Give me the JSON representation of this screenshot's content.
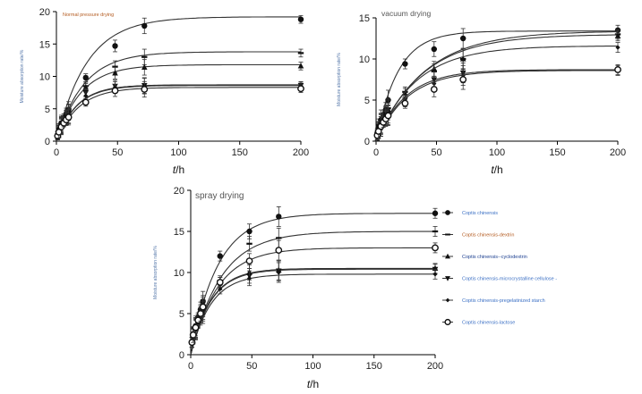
{
  "chart_data": [
    {
      "type": "line",
      "title": "Normal pressure drying",
      "title_color": "#b35a1f",
      "xlabel": "t/h",
      "ylabel": "Moisture absorption rate/%",
      "xlim": [
        0,
        200
      ],
      "ylim": [
        0,
        20
      ],
      "xticks": [
        0,
        50,
        100,
        150,
        200
      ],
      "yticks": [
        0,
        5,
        10,
        15,
        20
      ],
      "grid": false,
      "series": [
        {
          "marker": "circle-filled",
          "x": [
            1,
            2,
            4,
            6,
            8,
            10,
            24,
            48,
            72,
            200
          ],
          "y": [
            1.0,
            1.8,
            2.8,
            3.6,
            4.2,
            4.9,
            9.8,
            14.7,
            17.8,
            18.8
          ],
          "plateau": 19.2,
          "rate": 0.04
        },
        {
          "marker": "dash",
          "x": [
            1,
            2,
            4,
            6,
            8,
            10,
            24,
            48,
            72,
            200
          ],
          "y": [
            0.9,
            1.6,
            2.6,
            3.3,
            3.9,
            4.5,
            8.5,
            11.5,
            13.0,
            13.6
          ],
          "plateau": 13.8,
          "rate": 0.045
        },
        {
          "marker": "triangle",
          "x": [
            1,
            2,
            4,
            6,
            8,
            10,
            24,
            48,
            72,
            200
          ],
          "y": [
            0.9,
            1.6,
            2.5,
            3.2,
            3.8,
            4.4,
            8.3,
            10.5,
            11.4,
            11.6
          ],
          "plateau": 11.8,
          "rate": 0.05
        },
        {
          "marker": "triangle-down",
          "x": [
            1,
            2,
            4,
            6,
            8,
            10,
            24,
            48,
            72,
            200
          ],
          "y": [
            0.8,
            1.5,
            2.4,
            3.0,
            3.6,
            4.0,
            7.5,
            8.5,
            8.6,
            8.6
          ],
          "plateau": 8.7,
          "rate": 0.06
        },
        {
          "marker": "diamond",
          "x": [
            1,
            2,
            4,
            6,
            8,
            10,
            24,
            48,
            72,
            200
          ],
          "y": [
            0.8,
            1.5,
            2.3,
            2.9,
            3.5,
            3.9,
            7.0,
            8.3,
            8.5,
            8.5
          ],
          "plateau": 8.6,
          "rate": 0.06
        },
        {
          "marker": "circle-open",
          "x": [
            1,
            2,
            4,
            6,
            8,
            10,
            24,
            48,
            72,
            200
          ],
          "y": [
            0.8,
            1.4,
            2.2,
            2.8,
            3.3,
            3.7,
            6.0,
            7.8,
            8.0,
            8.1
          ],
          "plateau": 8.3,
          "rate": 0.055
        }
      ]
    },
    {
      "type": "line",
      "title": "vacuum drying",
      "title_color": "#555555",
      "xlabel": "t/h",
      "ylabel": "Moisture absorption rate/%",
      "xlim": [
        0,
        200
      ],
      "ylim": [
        0,
        15
      ],
      "xticks": [
        0,
        50,
        100,
        150,
        200
      ],
      "yticks": [
        0,
        5,
        10,
        15
      ],
      "grid": false,
      "series": [
        {
          "marker": "circle-filled",
          "x": [
            1,
            2,
            4,
            6,
            8,
            10,
            24,
            48,
            72,
            200
          ],
          "y": [
            1.0,
            1.8,
            2.6,
            3.2,
            3.8,
            5.0,
            9.4,
            11.2,
            12.5,
            13.5
          ],
          "plateau": 13.4,
          "rate": 0.055
        },
        {
          "marker": "dash",
          "x": [
            1,
            2,
            4,
            6,
            8,
            10,
            24,
            48,
            72,
            200
          ],
          "y": [
            0.8,
            1.5,
            2.2,
            2.8,
            3.4,
            4.0,
            6.0,
            8.5,
            10.0,
            13.0
          ],
          "plateau": 13.4,
          "rate": 0.025
        },
        {
          "marker": "triangle",
          "x": [
            1,
            2,
            4,
            6,
            8,
            10,
            24,
            48,
            72,
            200
          ],
          "y": [
            0.8,
            1.4,
            2.1,
            2.7,
            3.3,
            3.8,
            5.8,
            8.8,
            10.0,
            12.8
          ],
          "plateau": 13.0,
          "rate": 0.026
        },
        {
          "marker": "triangle-down",
          "x": [
            1,
            2,
            4,
            6,
            8,
            10,
            24,
            48,
            72,
            200
          ],
          "y": [
            0.7,
            1.3,
            2.0,
            2.5,
            3.0,
            3.4,
            5.0,
            7.5,
            8.3,
            8.6
          ],
          "plateau": 8.7,
          "rate": 0.04
        },
        {
          "marker": "diamond",
          "x": [
            1,
            2,
            4,
            6,
            8,
            10,
            24,
            48,
            72,
            200
          ],
          "y": [
            0.7,
            1.2,
            1.8,
            2.3,
            2.8,
            3.2,
            4.8,
            7.0,
            8.0,
            11.4
          ],
          "plateau": 11.6,
          "rate": 0.03
        },
        {
          "marker": "circle-open",
          "x": [
            1,
            2,
            4,
            6,
            8,
            10,
            24,
            48,
            72,
            200
          ],
          "y": [
            0.7,
            1.2,
            1.8,
            2.3,
            2.7,
            3.1,
            4.6,
            6.3,
            7.5,
            8.7
          ],
          "plateau": 8.6,
          "rate": 0.038
        }
      ]
    },
    {
      "type": "line",
      "title": "spray drying",
      "title_color": "#555555",
      "xlabel": "t/h",
      "ylabel": "Moisture absorption rate/%",
      "xlim": [
        0,
        200
      ],
      "ylim": [
        0,
        20
      ],
      "xticks": [
        0,
        50,
        100,
        150,
        200
      ],
      "yticks": [
        0,
        5,
        10,
        15,
        20
      ],
      "grid": false,
      "legend_placement": "right",
      "series": [
        {
          "name": "Coptis chinensis",
          "name_color": "#3a6fc4",
          "marker": "circle-filled",
          "x": [
            1,
            2,
            4,
            6,
            8,
            10,
            24,
            48,
            72,
            200
          ],
          "y": [
            1.5,
            2.5,
            3.5,
            4.5,
            5.5,
            6.5,
            12.0,
            15.0,
            16.8,
            17.2
          ],
          "plateau": 17.2,
          "rate": 0.045
        },
        {
          "name": "Coptis chinensis-dextrin",
          "name_color": "#b35a1f",
          "marker": "dash",
          "x": [
            1,
            2,
            4,
            6,
            8,
            10,
            24,
            48,
            72,
            200
          ],
          "y": [
            1.5,
            2.4,
            3.3,
            4.3,
            5.2,
            6.0,
            9.0,
            13.5,
            14.2,
            15.0
          ],
          "plateau": 15.0,
          "rate": 0.04
        },
        {
          "name": "Coptis chinensis--cyclodextrin",
          "name_color": "#1a3e8f",
          "marker": "triangle",
          "x": [
            1,
            2,
            4,
            6,
            8,
            10,
            24,
            48,
            72,
            200
          ],
          "y": [
            1.5,
            2.3,
            3.2,
            4.0,
            4.8,
            5.5,
            8.8,
            10.0,
            10.3,
            10.5
          ],
          "plateau": 10.5,
          "rate": 0.06
        },
        {
          "name": "Coptis chinensis-microcrystalline cellulose -",
          "name_color": "#3a6fc4",
          "marker": "triangle-down",
          "x": [
            1,
            2,
            4,
            6,
            8,
            10,
            24,
            48,
            72,
            200
          ],
          "y": [
            1.5,
            2.3,
            3.1,
            3.9,
            4.7,
            5.3,
            8.5,
            9.6,
            10.2,
            10.4
          ],
          "plateau": 10.4,
          "rate": 0.06
        },
        {
          "name": "Coptis chinensis-pregelatinized starch",
          "name_color": "#3a6fc4",
          "marker": "diamond",
          "x": [
            1,
            2,
            4,
            6,
            8,
            10,
            24,
            48,
            72,
            200
          ],
          "y": [
            1.5,
            2.2,
            3.0,
            3.8,
            4.5,
            5.0,
            8.0,
            9.3,
            10.0,
            9.8
          ],
          "plateau": 9.8,
          "rate": 0.06
        },
        {
          "name": "Coptis chinensis-lactose",
          "name_color": "#3a6fc4",
          "marker": "circle-open",
          "x": [
            1,
            2,
            4,
            6,
            8,
            10,
            24,
            48,
            72,
            200
          ],
          "y": [
            1.5,
            2.4,
            3.3,
            4.2,
            5.0,
            5.8,
            8.8,
            11.4,
            12.7,
            13.0
          ],
          "plateau": 13.0,
          "rate": 0.045
        }
      ]
    }
  ]
}
